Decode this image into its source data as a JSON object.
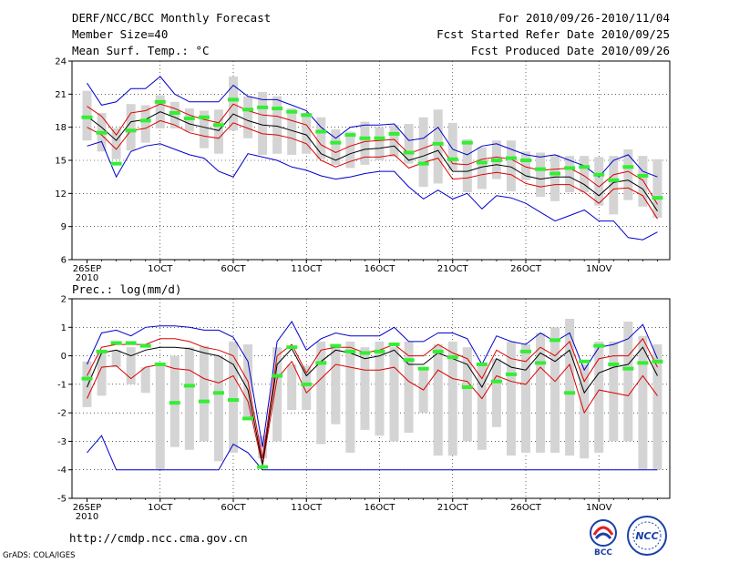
{
  "header": {
    "title": "DERF/NCC/BCC Monthly Forecast",
    "member_size": "Member Size=40",
    "variable_temp": "Mean Surf. Temp.: °C",
    "period": "For 2010/09/26-2010/11/04",
    "fcst_started": "Fcst Started Refer Date 2010/09/25",
    "fcst_produced": "Fcst Produced Date 2010/09/26"
  },
  "footer": {
    "url": "http://cmdp.ncc.cma.gov.cn",
    "credit": "GrADS: COLA/IGES",
    "logo_bcc_label": "BCC",
    "logo_ncc_label": "NCC"
  },
  "colors": {
    "ensemble_mean": "#000000",
    "upper_bound": "#0000cc",
    "lower_bound": "#dd0000",
    "member_box": "#d4d4d4",
    "observed": "#33ee33"
  },
  "chart_data": [
    {
      "type": "line",
      "panel": "temperature",
      "title": "Mean Surf. Temp.: °C",
      "ylim": [
        6,
        24
      ],
      "yticks": [
        6,
        9,
        12,
        15,
        18,
        21,
        24
      ],
      "xlabels": [
        {
          "day": 0,
          "label": "26SEP",
          "sub": "2010"
        },
        {
          "day": 5,
          "label": "1OCT"
        },
        {
          "day": 10,
          "label": "6OCT"
        },
        {
          "day": 15,
          "label": "11OCT"
        },
        {
          "day": 20,
          "label": "16OCT"
        },
        {
          "day": 25,
          "label": "21OCT"
        },
        {
          "day": 30,
          "label": "26OCT"
        },
        {
          "day": 35,
          "label": "1NOV"
        }
      ],
      "days": 40,
      "grid": true,
      "series": [
        {
          "name": "max",
          "values": [
            22.0,
            20.0,
            20.3,
            21.5,
            21.5,
            22.6,
            21.0,
            20.3,
            20.3,
            20.3,
            21.8,
            20.8,
            20.5,
            20.5,
            20.0,
            19.5,
            18.0,
            17.0,
            18.0,
            18.2,
            18.2,
            18.3,
            16.8,
            17.0,
            18.0,
            16.0,
            15.5,
            16.3,
            16.5,
            16.0,
            15.5,
            15.3,
            15.5,
            15.0,
            14.5,
            13.5,
            15.0,
            15.5,
            14.0,
            13.5
          ]
        },
        {
          "name": "upper",
          "values": [
            19.9,
            19.0,
            17.3,
            19.3,
            19.5,
            20.1,
            19.7,
            19.1,
            18.7,
            18.4,
            20.1,
            19.5,
            19.1,
            19.0,
            18.6,
            18.2,
            16.4,
            15.7,
            16.3,
            16.7,
            16.8,
            16.9,
            15.6,
            16.1,
            16.6,
            14.7,
            14.6,
            15.1,
            15.3,
            15.1,
            14.4,
            14.1,
            14.2,
            14.3,
            13.6,
            12.6,
            13.7,
            14.0,
            13.2,
            11.0
          ]
        },
        {
          "name": "mean",
          "values": [
            19.0,
            18.0,
            16.8,
            18.5,
            18.7,
            19.4,
            18.9,
            18.3,
            18.0,
            17.7,
            19.2,
            18.6,
            18.2,
            18.1,
            17.7,
            17.3,
            15.6,
            15.0,
            15.6,
            16.0,
            16.1,
            16.3,
            15.0,
            15.4,
            15.9,
            14.0,
            14.0,
            14.4,
            14.6,
            14.4,
            13.6,
            13.3,
            13.5,
            13.5,
            12.8,
            11.8,
            13.0,
            13.2,
            12.4,
            10.4
          ]
        },
        {
          "name": "lower",
          "values": [
            18.0,
            17.3,
            16.0,
            17.7,
            17.9,
            18.6,
            18.2,
            17.5,
            17.2,
            17.0,
            18.4,
            17.9,
            17.4,
            17.3,
            17.0,
            16.5,
            15.0,
            14.4,
            14.9,
            15.3,
            15.3,
            15.5,
            14.3,
            14.8,
            15.2,
            13.3,
            13.4,
            13.7,
            13.9,
            13.7,
            12.9,
            12.6,
            12.8,
            12.8,
            12.1,
            11.1,
            12.4,
            12.5,
            11.8,
            9.7
          ]
        },
        {
          "name": "min",
          "values": [
            16.3,
            16.7,
            13.5,
            15.8,
            16.3,
            16.5,
            16.0,
            15.5,
            15.2,
            14.0,
            13.5,
            15.6,
            15.3,
            15.0,
            14.4,
            14.1,
            13.6,
            13.3,
            13.5,
            13.8,
            14.0,
            14.0,
            12.6,
            11.5,
            12.3,
            11.5,
            12.0,
            10.6,
            11.8,
            11.6,
            11.1,
            10.3,
            9.5,
            10.0,
            10.5,
            9.5,
            9.5,
            8.0,
            7.8,
            8.5
          ]
        },
        {
          "name": "box_top",
          "values": [
            21.3,
            19.3,
            17.9,
            20.1,
            20.0,
            20.9,
            20.3,
            19.7,
            19.5,
            19.6,
            22.6,
            20.8,
            21.2,
            20.8,
            19.7,
            19.3,
            18.9,
            17.8,
            17.6,
            18.5,
            18.0,
            18.2,
            18.3,
            18.9,
            19.6,
            18.4,
            16.9,
            16.2,
            16.8,
            16.8,
            15.8,
            15.7,
            15.5,
            15.4,
            15.4,
            15.3,
            15.4,
            16.0,
            15.4,
            15.1
          ]
        },
        {
          "name": "box_bottom",
          "values": [
            16.8,
            15.8,
            15.1,
            15.9,
            16.6,
            17.9,
            17.9,
            17.6,
            16.1,
            15.6,
            17.7,
            17.0,
            15.5,
            15.6,
            15.5,
            15.6,
            15.1,
            14.6,
            14.3,
            14.6,
            15.0,
            15.3,
            14.7,
            12.6,
            12.9,
            14.1,
            12.1,
            12.4,
            13.3,
            12.2,
            13.2,
            11.7,
            11.3,
            12.1,
            12.1,
            10.9,
            10.1,
            11.4,
            10.8,
            9.8
          ]
        },
        {
          "name": "observed",
          "values": [
            18.9,
            17.5,
            14.7,
            17.7,
            18.6,
            20.3,
            19.3,
            18.8,
            18.9,
            18.2,
            20.5,
            19.6,
            19.8,
            19.7,
            19.4,
            19.1,
            17.6,
            16.6,
            17.3,
            17.0,
            17.0,
            17.4,
            15.7,
            14.7,
            16.5,
            15.1,
            16.6,
            14.8,
            15.0,
            15.2,
            15.0,
            14.2,
            13.8,
            14.3,
            14.4,
            13.7,
            13.2,
            14.4,
            13.6,
            11.6
          ]
        }
      ]
    },
    {
      "type": "line",
      "panel": "precipitation",
      "title": "Prec.: log(mm/d)",
      "ylim": [
        -5,
        2
      ],
      "yticks": [
        -5,
        -4,
        -3,
        -2,
        -1,
        0,
        1,
        2
      ],
      "xlabels": [
        {
          "day": 0,
          "label": "26SEP",
          "sub": "2010"
        },
        {
          "day": 5,
          "label": "1OCT"
        },
        {
          "day": 10,
          "label": "6OCT"
        },
        {
          "day": 15,
          "label": "11OCT"
        },
        {
          "day": 20,
          "label": "16OCT"
        },
        {
          "day": 25,
          "label": "21OCT"
        },
        {
          "day": 30,
          "label": "26OCT"
        },
        {
          "day": 35,
          "label": "1NOV"
        }
      ],
      "days": 40,
      "grid": true,
      "series": [
        {
          "name": "max",
          "values": [
            -0.3,
            0.8,
            0.9,
            0.7,
            1.0,
            1.05,
            1.05,
            1.0,
            0.9,
            0.9,
            0.65,
            -0.2,
            -3.2,
            0.5,
            1.2,
            0.2,
            0.6,
            0.8,
            0.7,
            0.7,
            0.7,
            1.0,
            0.5,
            0.5,
            0.8,
            0.8,
            0.6,
            -0.3,
            0.7,
            0.5,
            0.4,
            0.8,
            0.5,
            0.8,
            -0.5,
            0.3,
            0.4,
            0.6,
            1.1,
            -0.1
          ]
        },
        {
          "name": "upper",
          "values": [
            -0.7,
            0.3,
            0.4,
            0.4,
            0.4,
            0.6,
            0.6,
            0.5,
            0.3,
            0.2,
            0.0,
            -0.9,
            -3.6,
            0.0,
            0.4,
            -0.6,
            0.2,
            0.3,
            0.3,
            0.1,
            0.2,
            0.4,
            0.0,
            0.0,
            0.4,
            0.1,
            -0.1,
            -0.8,
            0.2,
            -0.1,
            -0.2,
            0.3,
            0.0,
            0.5,
            -0.9,
            -0.1,
            0.0,
            0.0,
            0.6,
            -0.4
          ]
        },
        {
          "name": "mean",
          "values": [
            -1.1,
            0.1,
            0.2,
            0.0,
            0.2,
            0.3,
            0.3,
            0.25,
            0.1,
            0.0,
            -0.3,
            -1.2,
            -3.8,
            -0.3,
            0.25,
            -0.7,
            -0.2,
            0.2,
            0.1,
            -0.1,
            0.0,
            0.2,
            -0.3,
            -0.3,
            0.1,
            -0.1,
            -0.3,
            -1.1,
            -0.1,
            -0.4,
            -0.5,
            0.1,
            -0.2,
            0.2,
            -1.3,
            -0.6,
            -0.4,
            -0.3,
            0.3,
            -0.7
          ]
        },
        {
          "name": "lower",
          "values": [
            -1.5,
            -0.4,
            -0.35,
            -0.8,
            -0.4,
            -0.3,
            -0.45,
            -0.5,
            -0.8,
            -0.95,
            -0.7,
            -1.6,
            -3.85,
            -0.8,
            -0.2,
            -1.3,
            -0.8,
            -0.3,
            -0.4,
            -0.5,
            -0.5,
            -0.4,
            -0.9,
            -1.2,
            -0.5,
            -0.8,
            -0.9,
            -1.5,
            -0.7,
            -0.9,
            -1.0,
            -0.4,
            -0.9,
            -0.3,
            -2.0,
            -1.2,
            -1.3,
            -1.4,
            -0.7,
            -1.4
          ]
        },
        {
          "name": "min",
          "values": [
            -3.4,
            -2.8,
            -4.0,
            -4.0,
            -4.0,
            -4.0,
            -4.0,
            -4.0,
            -4.0,
            -4.0,
            -3.1,
            -3.4,
            -4.0,
            -4.0,
            -4.0,
            -4.0,
            -4.0,
            -4.0,
            -4.0,
            -4.0,
            -4.0,
            -4.0,
            -4.0,
            -4.0,
            -4.0,
            -4.0,
            -4.0,
            -4.0,
            -4.0,
            -4.0,
            -4.0,
            -4.0,
            -4.0,
            -4.0,
            -4.0,
            -4.0,
            -4.0,
            -4.0,
            -4.0,
            -4.0
          ]
        },
        {
          "name": "box_top",
          "values": [
            -0.2,
            0.1,
            0.2,
            0.3,
            -0.4,
            -0.35,
            0.0,
            0.3,
            0.35,
            0.0,
            0.5,
            0.4,
            -2.8,
            0.3,
            -0.3,
            -0.35,
            0.5,
            0.4,
            0.5,
            0.3,
            0.5,
            0.3,
            0.5,
            -0.4,
            0.4,
            0.5,
            0.3,
            -0.3,
            -0.1,
            0.5,
            0.4,
            0.8,
            1.0,
            1.3,
            -0.3,
            0.5,
            0.5,
            1.2,
            0.7,
            0.4
          ]
        },
        {
          "name": "box_bottom",
          "values": [
            -1.8,
            -1.4,
            -0.4,
            -1.0,
            -1.3,
            -4.0,
            -3.2,
            -3.3,
            -3.0,
            -3.7,
            -3.4,
            -2.2,
            -3.6,
            -3.0,
            -1.9,
            -1.9,
            -3.1,
            -2.4,
            -3.4,
            -2.6,
            -2.8,
            -3.0,
            -2.7,
            -2.0,
            -3.5,
            -3.5,
            -3.0,
            -3.3,
            -2.5,
            -3.5,
            -3.4,
            -3.4,
            -3.4,
            -3.5,
            -3.6,
            -3.4,
            -3.0,
            -3.0,
            -4.0,
            -4.0
          ]
        },
        {
          "name": "observed",
          "values": [
            -0.8,
            0.15,
            0.45,
            0.45,
            0.35,
            -0.3,
            -1.65,
            -1.05,
            -1.6,
            -1.3,
            -1.55,
            -2.2,
            -3.9,
            -0.7,
            0.3,
            -1.0,
            -0.25,
            0.35,
            0.15,
            0.1,
            0.15,
            0.4,
            -0.15,
            -0.45,
            0.15,
            -0.05,
            -1.1,
            -0.3,
            -0.9,
            -0.65,
            0.15,
            -0.25,
            0.55,
            -1.3,
            -0.2,
            0.35,
            -0.3,
            -0.45,
            -0.25,
            -0.2
          ]
        }
      ]
    }
  ]
}
